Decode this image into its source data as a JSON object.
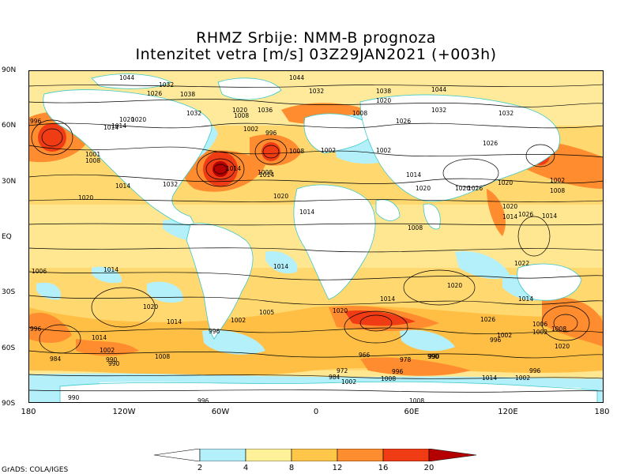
{
  "title_line1": "RHMZ Srbije: NMM-B prognoza",
  "title_line2": "Intenzitet vetra [m/s] 03Z29JAN2021 (+003h)",
  "y_axis_labels": [
    "90N",
    "60N",
    "30N",
    "EQ",
    "30S",
    "60S",
    "90S"
  ],
  "x_axis_labels": [
    "180",
    "120W",
    "60W",
    "0",
    "60E",
    "120E",
    "180"
  ],
  "colorbar": {
    "ticks": [
      "2",
      "4",
      "8",
      "12",
      "16",
      "20"
    ],
    "colors": [
      "#ffffff",
      "#b4f0fa",
      "#fff09a",
      "#ffc64a",
      "#ff8c2e",
      "#f03c14",
      "#b40000"
    ]
  },
  "pressure_labels": [
    "1044",
    "1032",
    "1026",
    "1020",
    "1014",
    "1038",
    "1044",
    "1032",
    "1020",
    "1036",
    "1044",
    "1038",
    "996",
    "1014",
    "1020",
    "1020",
    "1008",
    "1002",
    "996",
    "1032",
    "1008",
    "1002",
    "1008",
    "1002",
    "1026",
    "1032",
    "1032",
    "1026",
    "1014",
    "1001",
    "1008",
    "1014",
    "1032",
    "1014",
    "1008",
    "1002",
    "1014",
    "1020",
    "1020",
    "1020",
    "1020",
    "1026",
    "1008",
    "1026",
    "1020",
    "1020",
    "1014",
    "1014",
    "1014",
    "1008",
    "1014",
    "1006",
    "1014",
    "1022",
    "1020",
    "1014",
    "1020",
    "1008",
    "1002",
    "1005",
    "1020",
    "1002",
    "996",
    "1014",
    "1014",
    "1026",
    "1002",
    "1006",
    "1020",
    "1014",
    "996",
    "996",
    "1002",
    "984",
    "990",
    "990",
    "1008",
    "966",
    "978",
    "990",
    "996",
    "990",
    "1014",
    "1002",
    "996",
    "972",
    "984",
    "1002",
    "1008",
    "990",
    "996",
    "1008",
    "1002"
  ],
  "credit": "GrADS: COLA/IGES"
}
